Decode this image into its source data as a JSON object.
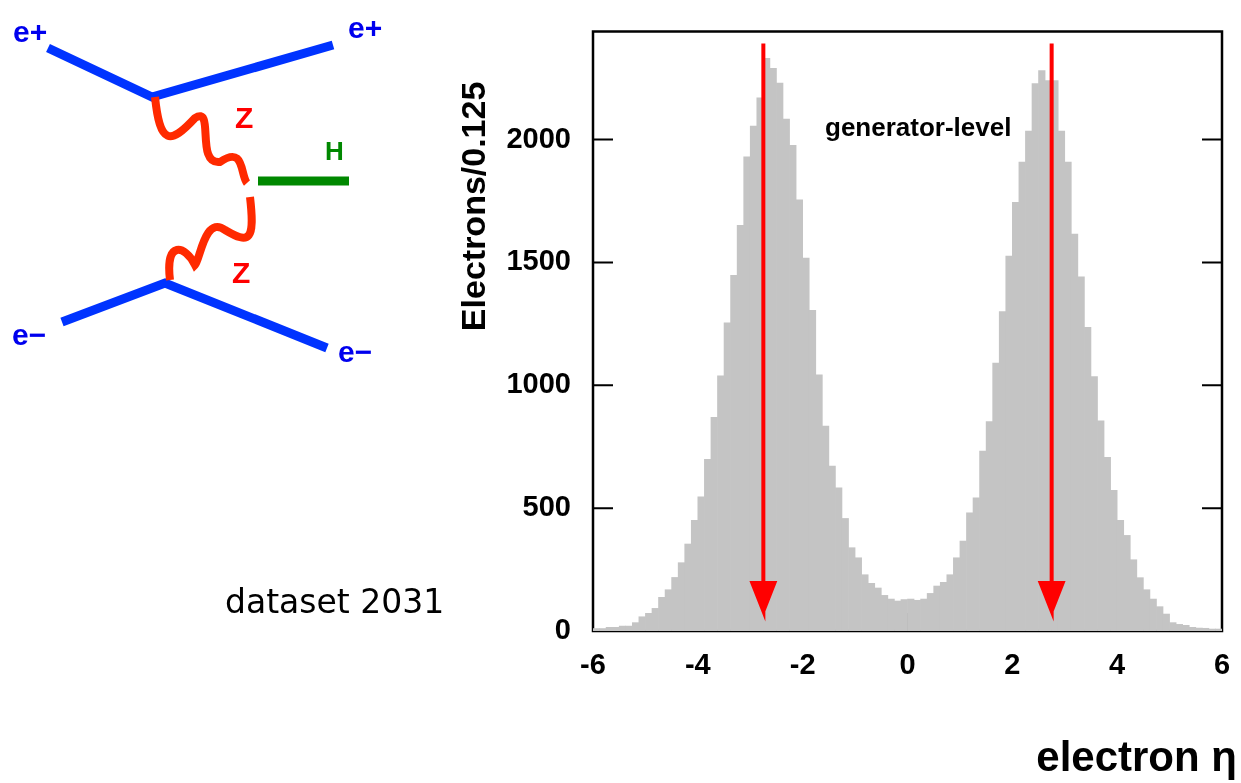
{
  "chart_data": {
    "type": "histogram",
    "ylabel": "Electrons/0.125",
    "xlabel": "electron η",
    "annotations": [
      "generator-level",
      "dataset 2031",
      "e+",
      "e+",
      "Z",
      "H",
      "Z",
      "e−",
      "e−"
    ],
    "bins": [
      -6,
      -5.875,
      -5.75,
      -5.625,
      -5.5,
      -5.375,
      -5.25,
      -5.125,
      -5,
      -4.875,
      -4.75,
      -4.625,
      -4.5,
      -4.375,
      -4.25,
      -4.125,
      -4,
      -3.875,
      -3.75,
      -3.625,
      -3.5,
      -3.375,
      -3.25,
      -3.125,
      -3,
      -2.875,
      -2.75,
      -2.625,
      -2.5,
      -2.375,
      -2.25,
      -2.125,
      -2,
      -1.875,
      -1.75,
      -1.625,
      -1.5,
      -1.375,
      -1.25,
      -1.125,
      -1,
      -0.875,
      -0.75,
      -0.625,
      -0.5,
      -0.375,
      -0.25,
      -0.125,
      0,
      0.125,
      0.25,
      0.375,
      0.5,
      0.625,
      0.75,
      0.875,
      1,
      1.125,
      1.25,
      1.375,
      1.5,
      1.625,
      1.75,
      1.875,
      2,
      2.125,
      2.25,
      2.375,
      2.5,
      2.625,
      2.75,
      2.875,
      3,
      3.125,
      3.25,
      3.375,
      3.5,
      3.625,
      3.75,
      3.875,
      4,
      4.125,
      4.25,
      4.375,
      4.5,
      4.625,
      4.75,
      4.875,
      5,
      5.125,
      5.25,
      5.375,
      5.5,
      5.625,
      5.75,
      5.875,
      6
    ],
    "values": [
      10,
      10,
      15,
      15,
      20,
      20,
      34,
      58,
      72,
      92,
      137,
      168,
      218,
      278,
      354,
      450,
      546,
      699,
      870,
      1038,
      1254,
      1447,
      1651,
      1930,
      2055,
      2170,
      2330,
      2290,
      2230,
      2083,
      1976,
      1755,
      1518,
      1305,
      1042,
      834,
      671,
      583,
      458,
      339,
      298,
      229,
      194,
      175,
      145,
      130,
      122,
      128,
      130,
      125,
      130,
      153,
      183,
      198,
      229,
      298,
      366,
      481,
      542,
      732,
      852,
      1090,
      1300,
      1526,
      1744,
      1908,
      2034,
      2228,
      2281,
      2240,
      2240,
      2034,
      1908,
      1615,
      1441,
      1236,
      1035,
      855,
      707,
      572,
      450,
      389,
      290,
      217,
      168,
      130,
      99,
      69,
      34,
      27,
      23,
      15,
      12,
      11,
      8,
      8
    ],
    "color": "#c4c4c4",
    "xlim": [
      -6,
      6
    ],
    "xticks": [
      -6,
      -4,
      -2,
      0,
      2,
      4,
      6
    ],
    "ylim": [
      0,
      2440
    ],
    "yticks": [
      0,
      500,
      1000,
      1500,
      2000
    ],
    "ref_lines": [
      {
        "axis": "x",
        "value": -2.75,
        "color": "#ff0000"
      },
      {
        "axis": "x",
        "value": 2.75,
        "color": "#ff0000"
      }
    ]
  }
}
